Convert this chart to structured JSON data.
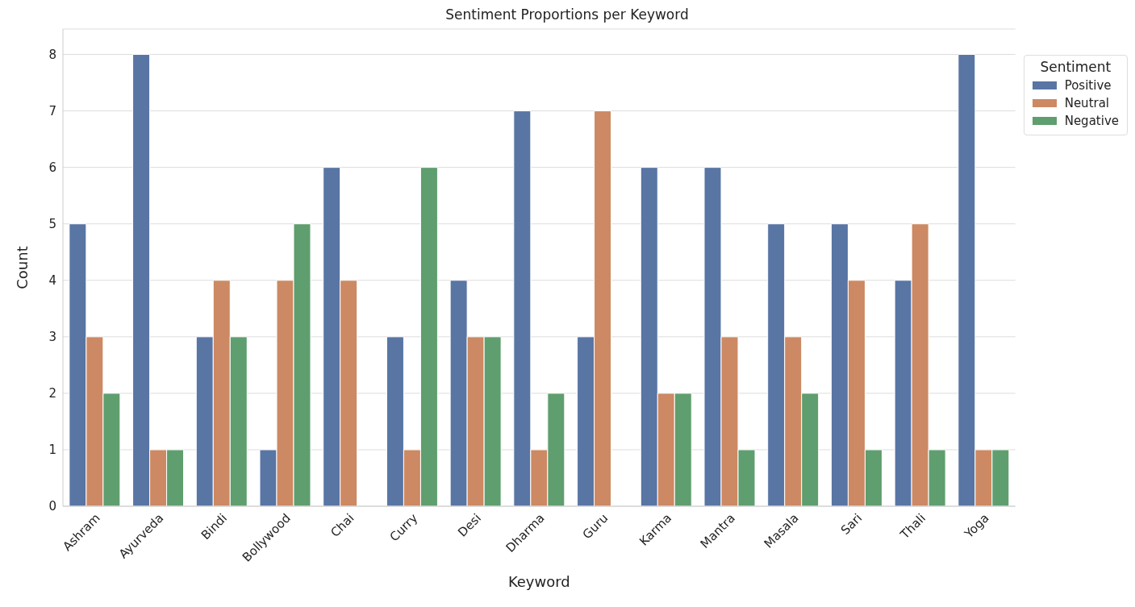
{
  "chart_data": {
    "type": "bar",
    "title": "Sentiment Proportions per Keyword",
    "xlabel": "Keyword",
    "ylabel": "Count",
    "legend_title": "Sentiment",
    "categories": [
      "Ashram",
      "Ayurveda",
      "Bindi",
      "Bollywood",
      "Chai",
      "Curry",
      "Desi",
      "Dharma",
      "Guru",
      "Karma",
      "Mantra",
      "Masala",
      "Sari",
      "Thali",
      "Yoga"
    ],
    "series": [
      {
        "name": "Positive",
        "color": "#5875a4",
        "values": [
          5,
          8,
          3,
          1,
          6,
          3,
          4,
          7,
          3,
          6,
          6,
          5,
          5,
          4,
          8
        ]
      },
      {
        "name": "Neutral",
        "color": "#cc8963",
        "values": [
          3,
          1,
          4,
          4,
          4,
          1,
          3,
          1,
          7,
          2,
          3,
          3,
          4,
          5,
          1
        ]
      },
      {
        "name": "Negative",
        "color": "#5f9e6e",
        "values": [
          2,
          1,
          3,
          5,
          0,
          6,
          3,
          2,
          0,
          2,
          1,
          2,
          1,
          1,
          1
        ]
      }
    ],
    "ylim": [
      0,
      8.45
    ],
    "yticks": [
      0,
      1,
      2,
      3,
      4,
      5,
      6,
      7,
      8
    ],
    "grid": "y",
    "legend": "top right"
  }
}
